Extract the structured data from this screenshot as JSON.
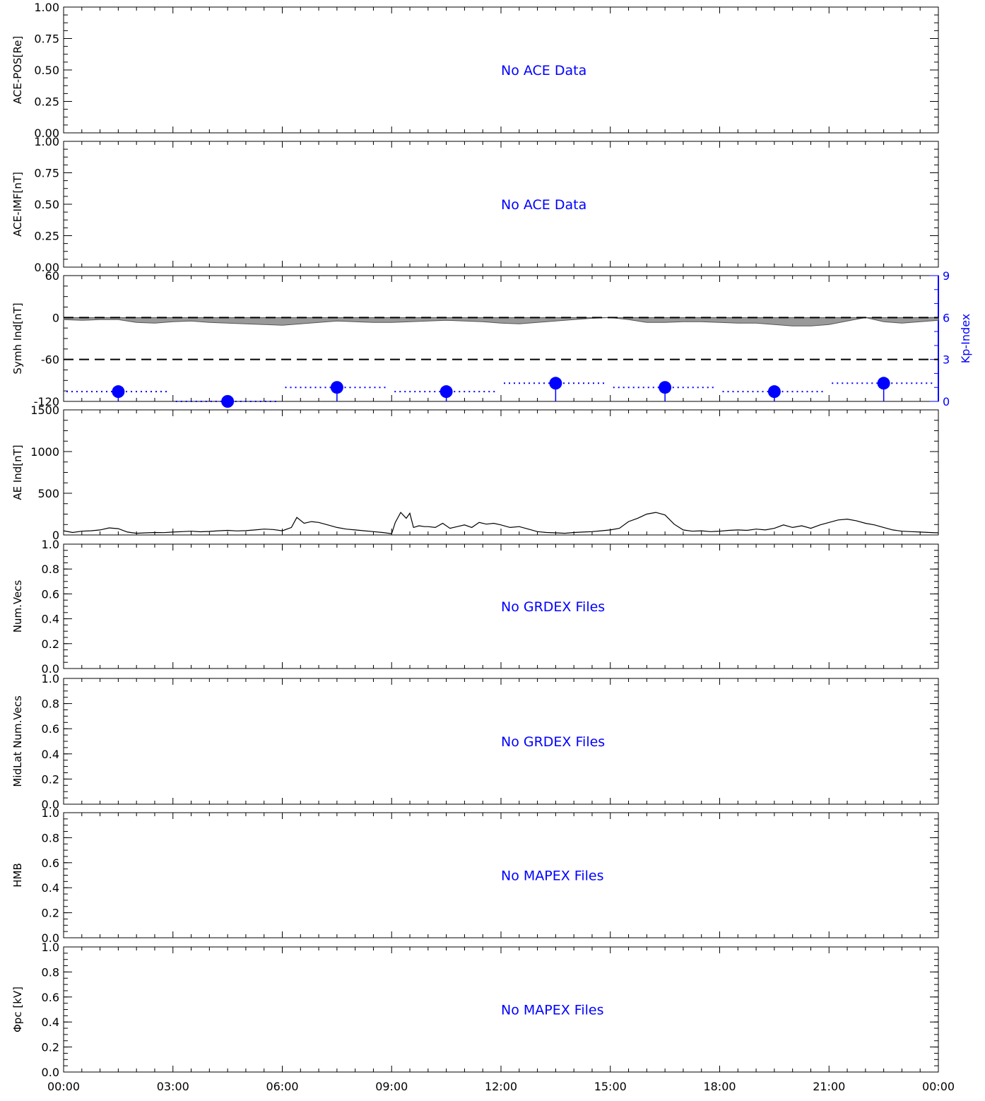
{
  "colors": {
    "axis": "#000000",
    "message": "#0000ff",
    "kp": "#0000ff",
    "symh_fill": "#9a9a9a",
    "ae_line": "#000000"
  },
  "x_axis": {
    "ticks": [
      "00:00",
      "03:00",
      "06:00",
      "09:00",
      "12:00",
      "15:00",
      "18:00",
      "21:00",
      "00:00"
    ]
  },
  "panels": [
    {
      "id": "ace-pos",
      "ylabel": "ACE-POS[Re]",
      "ylim": [
        0,
        1
      ],
      "yticks": [
        "0.00",
        "0.25",
        "0.50",
        "0.75",
        "1.00"
      ],
      "message": "No ACE Data"
    },
    {
      "id": "ace-imf",
      "ylabel": "ACE-IMF[nT]",
      "ylim": [
        0,
        1
      ],
      "yticks": [
        "0.00",
        "0.25",
        "0.50",
        "0.75",
        "1.00"
      ],
      "message": "No ACE Data"
    },
    {
      "id": "symh",
      "ylabel": "Symh Ind[nT]",
      "ylim": [
        -120,
        60
      ],
      "yticks": [
        "-120",
        "-60",
        "0",
        "60"
      ],
      "message": "",
      "right_ylabel": "Kp-Index",
      "right_ylim": [
        0,
        9
      ],
      "right_yticks": [
        "0",
        "3",
        "6",
        "9"
      ]
    },
    {
      "id": "ae",
      "ylabel": "AE Ind[nT]",
      "ylim": [
        0,
        1500
      ],
      "yticks": [
        "0",
        "500",
        "1000",
        "1500"
      ],
      "message": ""
    },
    {
      "id": "numvecs",
      "ylabel": "Num.Vecs",
      "ylim": [
        0,
        1
      ],
      "yticks": [
        "0.0",
        "0.2",
        "0.4",
        "0.6",
        "0.8",
        "1.0"
      ],
      "message": "No GRDEX Files"
    },
    {
      "id": "midlat",
      "ylabel": "MidLat Num.Vecs",
      "ylim": [
        0,
        1
      ],
      "yticks": [
        "0.0",
        "0.2",
        "0.4",
        "0.6",
        "0.8",
        "1.0"
      ],
      "message": "No GRDEX Files"
    },
    {
      "id": "hmb",
      "ylabel": "HMB",
      "ylim": [
        0,
        1
      ],
      "yticks": [
        "0.0",
        "0.2",
        "0.4",
        "0.6",
        "0.8",
        "1.0"
      ],
      "message": "No MAPEX Files"
    },
    {
      "id": "phipc",
      "ylabel": "Φpc [kV]",
      "ylim": [
        0,
        1
      ],
      "yticks": [
        "0.0",
        "0.2",
        "0.4",
        "0.6",
        "0.8",
        "1.0"
      ],
      "message": "No MAPEX Files"
    }
  ],
  "chart_data": [
    {
      "type": "bar",
      "title": "Kp-Index",
      "x_hours": [
        1.5,
        4.5,
        7.5,
        10.5,
        13.5,
        16.5,
        19.5,
        22.5
      ],
      "values": [
        0.7,
        0.0,
        1.0,
        0.7,
        1.3,
        1.0,
        0.7,
        1.3
      ],
      "ylim": [
        0,
        9
      ]
    },
    {
      "type": "area",
      "title": "Symh Ind",
      "reference_lines": [
        0,
        -60
      ],
      "x_hours": [
        0,
        0.5,
        1.0,
        1.5,
        2.0,
        2.5,
        3.0,
        3.5,
        4.0,
        4.5,
        5.0,
        5.5,
        6.0,
        6.5,
        7.0,
        7.5,
        8.0,
        8.5,
        9.0,
        9.5,
        10.0,
        10.5,
        11.0,
        11.5,
        12.0,
        12.5,
        13.0,
        13.5,
        14.0,
        14.5,
        15.0,
        15.5,
        16.0,
        16.5,
        17.0,
        17.5,
        18.0,
        18.5,
        19.0,
        19.5,
        20.0,
        20.5,
        21.0,
        21.5,
        22.0,
        22.5,
        23.0,
        23.5,
        24.0
      ],
      "values": [
        -3,
        -4,
        -3,
        -3,
        -7,
        -8,
        -6,
        -5,
        -7,
        -8,
        -9,
        -10,
        -11,
        -9,
        -7,
        -5,
        -6,
        -7,
        -7,
        -6,
        -5,
        -4,
        -5,
        -6,
        -8,
        -9,
        -7,
        -5,
        -3,
        -1,
        0,
        -3,
        -7,
        -7,
        -6,
        -6,
        -7,
        -8,
        -8,
        -10,
        -12,
        -12,
        -10,
        -5,
        0,
        -6,
        -8,
        -6,
        -4
      ]
    },
    {
      "type": "line",
      "title": "AE Ind",
      "x_hours": [
        0,
        0.25,
        0.5,
        0.75,
        1.0,
        1.25,
        1.5,
        1.75,
        2.0,
        2.25,
        2.5,
        2.75,
        3.0,
        3.25,
        3.5,
        3.75,
        4.0,
        4.25,
        4.5,
        4.75,
        5.0,
        5.25,
        5.5,
        5.75,
        6.0,
        6.25,
        6.4,
        6.6,
        6.8,
        7.0,
        7.25,
        7.5,
        7.75,
        8.0,
        8.25,
        8.5,
        8.75,
        9.0,
        9.1,
        9.25,
        9.4,
        9.5,
        9.6,
        9.75,
        9.9,
        10.0,
        10.2,
        10.4,
        10.6,
        10.8,
        11.0,
        11.2,
        11.4,
        11.6,
        11.8,
        12.0,
        12.25,
        12.5,
        12.75,
        13.0,
        13.25,
        13.5,
        13.75,
        14.0,
        14.25,
        14.5,
        14.75,
        15.0,
        15.25,
        15.5,
        15.75,
        16.0,
        16.25,
        16.5,
        16.75,
        17.0,
        17.25,
        17.5,
        17.75,
        18.0,
        18.25,
        18.5,
        18.75,
        19.0,
        19.25,
        19.5,
        19.75,
        20.0,
        20.25,
        20.5,
        20.75,
        21.0,
        21.25,
        21.5,
        21.75,
        22.0,
        22.25,
        22.5,
        22.75,
        23.0,
        23.25,
        23.5,
        23.75,
        24.0
      ],
      "values": [
        50,
        30,
        45,
        50,
        60,
        85,
        75,
        35,
        20,
        25,
        30,
        28,
        35,
        40,
        45,
        38,
        42,
        50,
        55,
        48,
        52,
        60,
        70,
        65,
        50,
        90,
        210,
        140,
        160,
        150,
        120,
        90,
        70,
        60,
        50,
        40,
        30,
        15,
        150,
        270,
        200,
        260,
        90,
        110,
        100,
        100,
        90,
        140,
        80,
        100,
        120,
        90,
        150,
        130,
        140,
        120,
        90,
        100,
        70,
        40,
        30,
        25,
        20,
        30,
        35,
        40,
        50,
        60,
        80,
        160,
        200,
        250,
        270,
        240,
        130,
        60,
        45,
        50,
        40,
        45,
        55,
        60,
        55,
        70,
        60,
        80,
        120,
        90,
        110,
        80,
        120,
        150,
        180,
        190,
        170,
        140,
        120,
        90,
        60,
        45,
        40,
        35,
        30,
        25
      ]
    }
  ]
}
